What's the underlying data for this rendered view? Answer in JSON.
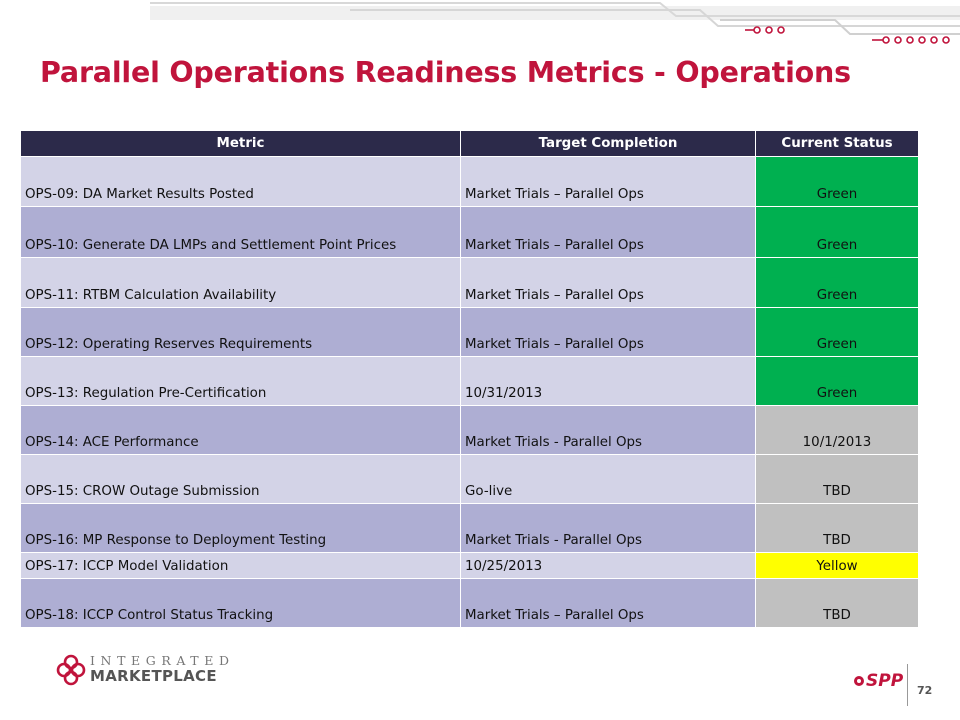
{
  "title": "Parallel Operations Readiness Metrics - Operations",
  "table": {
    "headers": [
      "Metric",
      "Target Completion",
      "Current Status"
    ],
    "rows": [
      {
        "metric": "OPS-09: DA Market Results Posted",
        "target": "Market Trials – Parallel Ops",
        "status": "Green",
        "status_color": "#00b050"
      },
      {
        "metric": "OPS-10: Generate DA LMPs and Settlement Point Prices",
        "target": "Market Trials – Parallel Ops",
        "status": "Green",
        "status_color": "#00b050"
      },
      {
        "metric": "OPS-11: RTBM Calculation Availability",
        "target": "Market Trials – Parallel Ops",
        "status": "Green",
        "status_color": "#00b050"
      },
      {
        "metric": "OPS-12: Operating Reserves Requirements",
        "target": "Market Trials – Parallel Ops",
        "status": "Green",
        "status_color": "#00b050"
      },
      {
        "metric": "OPS-13: Regulation Pre-Certification",
        "target": "10/31/2013",
        "status": "Green",
        "status_color": "#00b050"
      },
      {
        "metric": "OPS-14: ACE Performance",
        "target": "Market Trials - Parallel Ops",
        "status": "10/1/2013",
        "status_color": "#c0c0c0"
      },
      {
        "metric": "OPS-15: CROW Outage Submission",
        "target": "Go-live",
        "status": "TBD",
        "status_color": "#c0c0c0"
      },
      {
        "metric": "OPS-16: MP Response to Deployment Testing",
        "target": "Market Trials - Parallel Ops",
        "status": "TBD",
        "status_color": "#c0c0c0"
      },
      {
        "metric": "OPS-17: ICCP Model Validation",
        "target": "10/25/2013",
        "status": "Yellow",
        "status_color": "#ffff00"
      },
      {
        "metric": "OPS-18: ICCP Control Status Tracking",
        "target": "Market Trials – Parallel Ops",
        "status": "TBD",
        "status_color": "#c0c0c0"
      }
    ]
  },
  "footer": {
    "logo_line1": "INTEGRATED",
    "logo_line2": "MARKETPLACE",
    "brand": "SPP",
    "page_number": "72"
  },
  "colors": {
    "title": "#c0143c",
    "header_bg": "#2c2a4a",
    "row_light": "#d3d3e7",
    "row_dark": "#aeaed3"
  }
}
